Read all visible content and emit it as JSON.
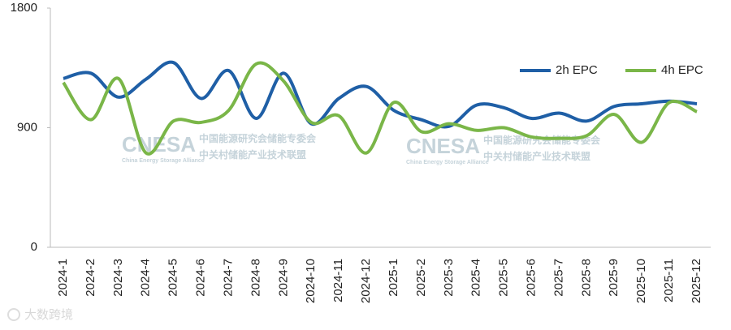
{
  "chart_data": {
    "type": "line",
    "categories": [
      "2024-1",
      "2024-2",
      "2024-3",
      "2024-4",
      "2024-5",
      "2024-6",
      "2024-7",
      "2024-8",
      "2024-9",
      "2024-10",
      "2024-11",
      "2024-12",
      "2025-1",
      "2025-2",
      "2025-3",
      "2025-4",
      "2025-5",
      "2025-6",
      "2025-7",
      "2025-8",
      "2025-9",
      "2025-10",
      "2025-11",
      "2025-12"
    ],
    "series": [
      {
        "name": "2h EPC",
        "color": "#1f5fa6",
        "values": [
          1270,
          1310,
          1130,
          1265,
          1390,
          1120,
          1330,
          970,
          1310,
          930,
          1120,
          1210,
          1030,
          960,
          910,
          1070,
          1050,
          970,
          1010,
          950,
          1060,
          1080,
          1100,
          1080
        ]
      },
      {
        "name": "4h EPC",
        "color": "#7ab648",
        "values": [
          1240,
          960,
          1270,
          710,
          950,
          940,
          1030,
          1380,
          1250,
          940,
          990,
          710,
          1090,
          870,
          930,
          880,
          900,
          830,
          820,
          840,
          1000,
          790,
          1090,
          1020
        ]
      }
    ],
    "ylim": [
      0,
      1800
    ],
    "yticks": [
      0,
      900,
      1800
    ],
    "smooth": true,
    "legend": "top-right",
    "watermarks": [
      "CNESA",
      "中国能源研究会储能专委会",
      "中关村储能产业技术联盟",
      "China Energy Storage Alliance"
    ],
    "logo_text": "大数跨境"
  }
}
